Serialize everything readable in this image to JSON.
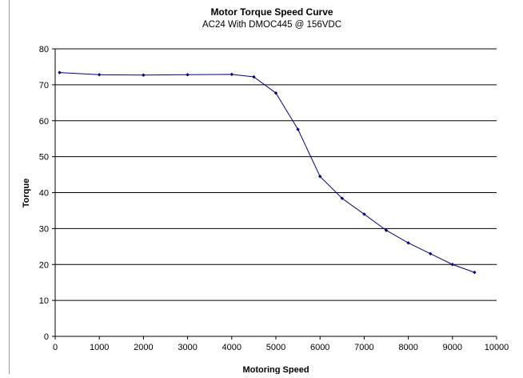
{
  "chart_data": {
    "type": "scatter",
    "title": "Motor Torque Speed Curve",
    "subtitle": "AC24 With DMOC445 @ 156VDC",
    "xlabel": "Motoring Speed",
    "ylabel": "Torque",
    "xlim": [
      0,
      10000
    ],
    "ylim": [
      0,
      80
    ],
    "x_ticks": [
      0,
      1000,
      2000,
      3000,
      4000,
      5000,
      6000,
      7000,
      8000,
      9000,
      10000
    ],
    "y_ticks": [
      0,
      10,
      20,
      30,
      40,
      50,
      60,
      70,
      80
    ],
    "grid": "horizontal",
    "legend": "none",
    "line_color": "#000080",
    "marker_color": "#000080",
    "series": [
      {
        "x": [
          100,
          1000,
          2000,
          3000,
          4000,
          4500,
          5000,
          5500,
          6000,
          6500,
          7000,
          7500,
          8000,
          8500,
          9000,
          9500
        ],
        "y": [
          73.4,
          72.8,
          72.7,
          72.8,
          72.9,
          72.2,
          67.7,
          57.6,
          44.5,
          38.4,
          34.0,
          29.5,
          26.0,
          23.0,
          20.0,
          17.8
        ]
      }
    ]
  }
}
